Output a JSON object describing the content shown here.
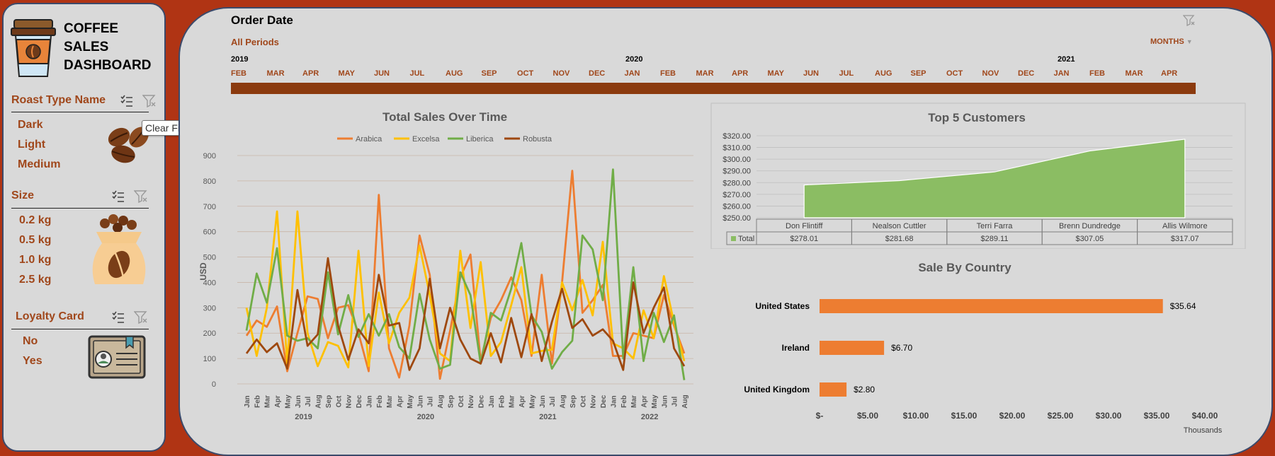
{
  "dashboard": {
    "title_lines": [
      "COFFEE",
      "SALES",
      "DASHBOARD"
    ]
  },
  "slicers": {
    "roast": {
      "title": "Roast Type Name",
      "items": [
        "Dark",
        "Light",
        "Medium"
      ]
    },
    "size": {
      "title": "Size",
      "items": [
        "0.2 kg",
        "0.5 kg",
        "1.0 kg",
        "2.5 kg"
      ]
    },
    "loyalty": {
      "title": "Loyalty Card",
      "items": [
        "No",
        "Yes"
      ]
    }
  },
  "tooltip": "Clear Filter (Alt+C)",
  "timeline": {
    "title": "Order Date",
    "period": "All Periods",
    "level": "MONTHS",
    "years": [
      "2019",
      "2020",
      "2021"
    ],
    "months": [
      "FEB",
      "MAR",
      "APR",
      "MAY",
      "JUN",
      "JUL",
      "AUG",
      "SEP",
      "OCT",
      "NOV",
      "DEC",
      "JAN",
      "FEB",
      "MAR",
      "APR",
      "MAY",
      "JUN",
      "JUL",
      "AUG",
      "SEP",
      "OCT",
      "NOV",
      "DEC",
      "JAN",
      "FEB",
      "MAR",
      "APR"
    ]
  },
  "colors": {
    "accent": "#a0471b",
    "timeline_bar": "#8b3a0e",
    "background": "#b03414"
  },
  "icons": [
    "coffee-cup-icon",
    "coffee-beans-icon",
    "coffee-bag-icon",
    "loyalty-card-icon",
    "multi-select-icon",
    "clear-filter-icon"
  ],
  "chart_data": [
    {
      "type": "line",
      "title": "Total Sales Over Time",
      "ylabel": "USD",
      "ylim": [
        0,
        900
      ],
      "yticks": [
        0,
        100,
        200,
        300,
        400,
        500,
        600,
        700,
        800,
        900
      ],
      "legend": "top",
      "categories": [
        "Jan",
        "Feb",
        "Mar",
        "Apr",
        "May",
        "Jun",
        "Jul",
        "Aug",
        "Sep",
        "Oct",
        "Nov",
        "Dec",
        "Jan",
        "Feb",
        "Mar",
        "Apr",
        "May",
        "Jun",
        "Jul",
        "Aug",
        "Sep",
        "Oct",
        "Nov",
        "Dec",
        "Jan",
        "Feb",
        "Mar",
        "Apr",
        "May",
        "Jun",
        "Jul",
        "Aug",
        "Sep",
        "Oct",
        "Nov",
        "Dec",
        "Jan",
        "Feb",
        "Mar",
        "Apr",
        "May",
        "Jun",
        "Jul",
        "Aug"
      ],
      "year_labels": [
        "2019",
        "2020",
        "2021",
        "2022"
      ],
      "series": [
        {
          "name": "Arabica",
          "color": "#ed7d31",
          "values": [
            190,
            250,
            225,
            305,
            50,
            200,
            345,
            335,
            180,
            300,
            310,
            200,
            50,
            745,
            140,
            25,
            230,
            585,
            430,
            20,
            210,
            420,
            510,
            90,
            260,
            330,
            420,
            330,
            110,
            430,
            80,
            400,
            840,
            280,
            330,
            390,
            110,
            110,
            200,
            190,
            180,
            350,
            230,
            120
          ]
        },
        {
          "name": "Excelsa",
          "color": "#ffc000",
          "values": [
            300,
            110,
            300,
            680,
            80,
            680,
            200,
            70,
            165,
            150,
            65,
            525,
            70,
            360,
            160,
            280,
            340,
            545,
            350,
            120,
            90,
            525,
            220,
            480,
            110,
            165,
            310,
            460,
            120,
            130,
            135,
            400,
            290,
            410,
            270,
            560,
            160,
            140,
            100,
            290,
            180,
            425,
            240,
            90
          ]
        },
        {
          "name": "Liberica",
          "color": "#70ad47",
          "values": [
            210,
            435,
            320,
            535,
            190,
            170,
            180,
            140,
            440,
            195,
            350,
            185,
            275,
            190,
            275,
            145,
            100,
            355,
            175,
            60,
            75,
            440,
            350,
            80,
            280,
            250,
            375,
            555,
            270,
            205,
            60,
            125,
            170,
            585,
            530,
            330,
            845,
            100,
            460,
            90,
            280,
            165,
            270,
            15
          ]
        },
        {
          "name": "Robusta",
          "color": "#9e480e",
          "values": [
            120,
            175,
            125,
            160,
            60,
            370,
            150,
            195,
            495,
            230,
            95,
            215,
            160,
            430,
            230,
            240,
            55,
            140,
            415,
            140,
            300,
            175,
            100,
            80,
            200,
            85,
            260,
            105,
            275,
            90,
            245,
            375,
            220,
            255,
            190,
            215,
            170,
            55,
            400,
            200,
            300,
            380,
            140,
            70
          ]
        }
      ]
    },
    {
      "type": "area",
      "title": "Top 5 Customers",
      "ylim": [
        250,
        320
      ],
      "yticks": [
        "$250.00",
        "$260.00",
        "$270.00",
        "$280.00",
        "$290.00",
        "$300.00",
        "$310.00",
        "$320.00"
      ],
      "categories": [
        "Don Flintiff",
        "Nealson Cuttler",
        "Terri Farra",
        "Brenn Dundredge",
        "Allis Wilmore"
      ],
      "series": [
        {
          "name": "Total",
          "color": "#8bbd63",
          "values": [
            278.01,
            281.68,
            289.11,
            307.05,
            317.07
          ],
          "labels": [
            "$278.01",
            "$281.68",
            "$289.11",
            "$307.05",
            "$317.07"
          ]
        }
      ]
    },
    {
      "type": "bar",
      "orientation": "horizontal",
      "title": "Sale By Country",
      "xlabel": "Thousands",
      "xlim": [
        0,
        40
      ],
      "xticks": [
        "$-",
        "$5.00",
        "$10.00",
        "$15.00",
        "$20.00",
        "$25.00",
        "$30.00",
        "$35.00",
        "$40.00"
      ],
      "color": "#ed7d31",
      "categories": [
        "United States",
        "Ireland",
        "United Kingdom"
      ],
      "values": [
        35.64,
        6.7,
        2.8
      ],
      "labels": [
        "$35.64",
        "$6.70",
        "$2.80"
      ]
    }
  ]
}
